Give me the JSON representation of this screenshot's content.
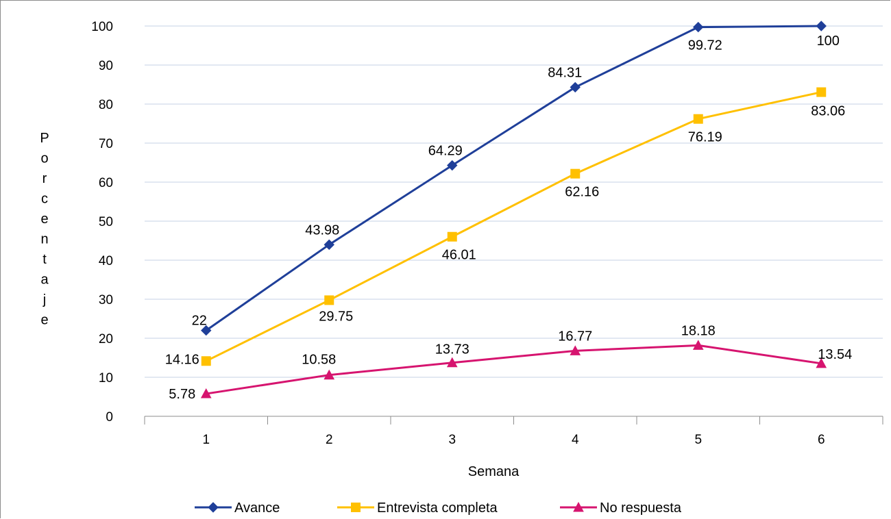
{
  "chart_data": {
    "type": "line",
    "title": "",
    "xlabel": "Semana",
    "ylabel": "Porcentaje",
    "categories": [
      "1",
      "2",
      "3",
      "4",
      "5",
      "6"
    ],
    "ylim": [
      0,
      100
    ],
    "yticks": [
      0,
      10,
      20,
      30,
      40,
      50,
      60,
      70,
      80,
      90,
      100
    ],
    "grid": true,
    "legend_position": "bottom",
    "series": [
      {
        "name": "Avance",
        "color": "#1f3f99",
        "marker": "diamond",
        "values": [
          22,
          43.98,
          64.29,
          84.31,
          99.72,
          100
        ],
        "labels": [
          "22",
          "43.98",
          "64.29",
          "84.31",
          "99.72",
          "100"
        ]
      },
      {
        "name": "Entrevista completa",
        "color": "#ffc000",
        "marker": "square",
        "values": [
          14.16,
          29.75,
          46.01,
          62.16,
          76.19,
          83.06
        ],
        "labels": [
          "14.16",
          "29.75",
          "46.01",
          "62.16",
          "76.19",
          "83.06"
        ]
      },
      {
        "name": "No respuesta",
        "color": "#d6146f",
        "marker": "triangle",
        "values": [
          5.78,
          10.58,
          13.73,
          16.77,
          18.18,
          13.54
        ],
        "labels": [
          "5.78",
          "10.58",
          "13.73",
          "16.77",
          "18.18",
          "13.54"
        ]
      }
    ]
  }
}
